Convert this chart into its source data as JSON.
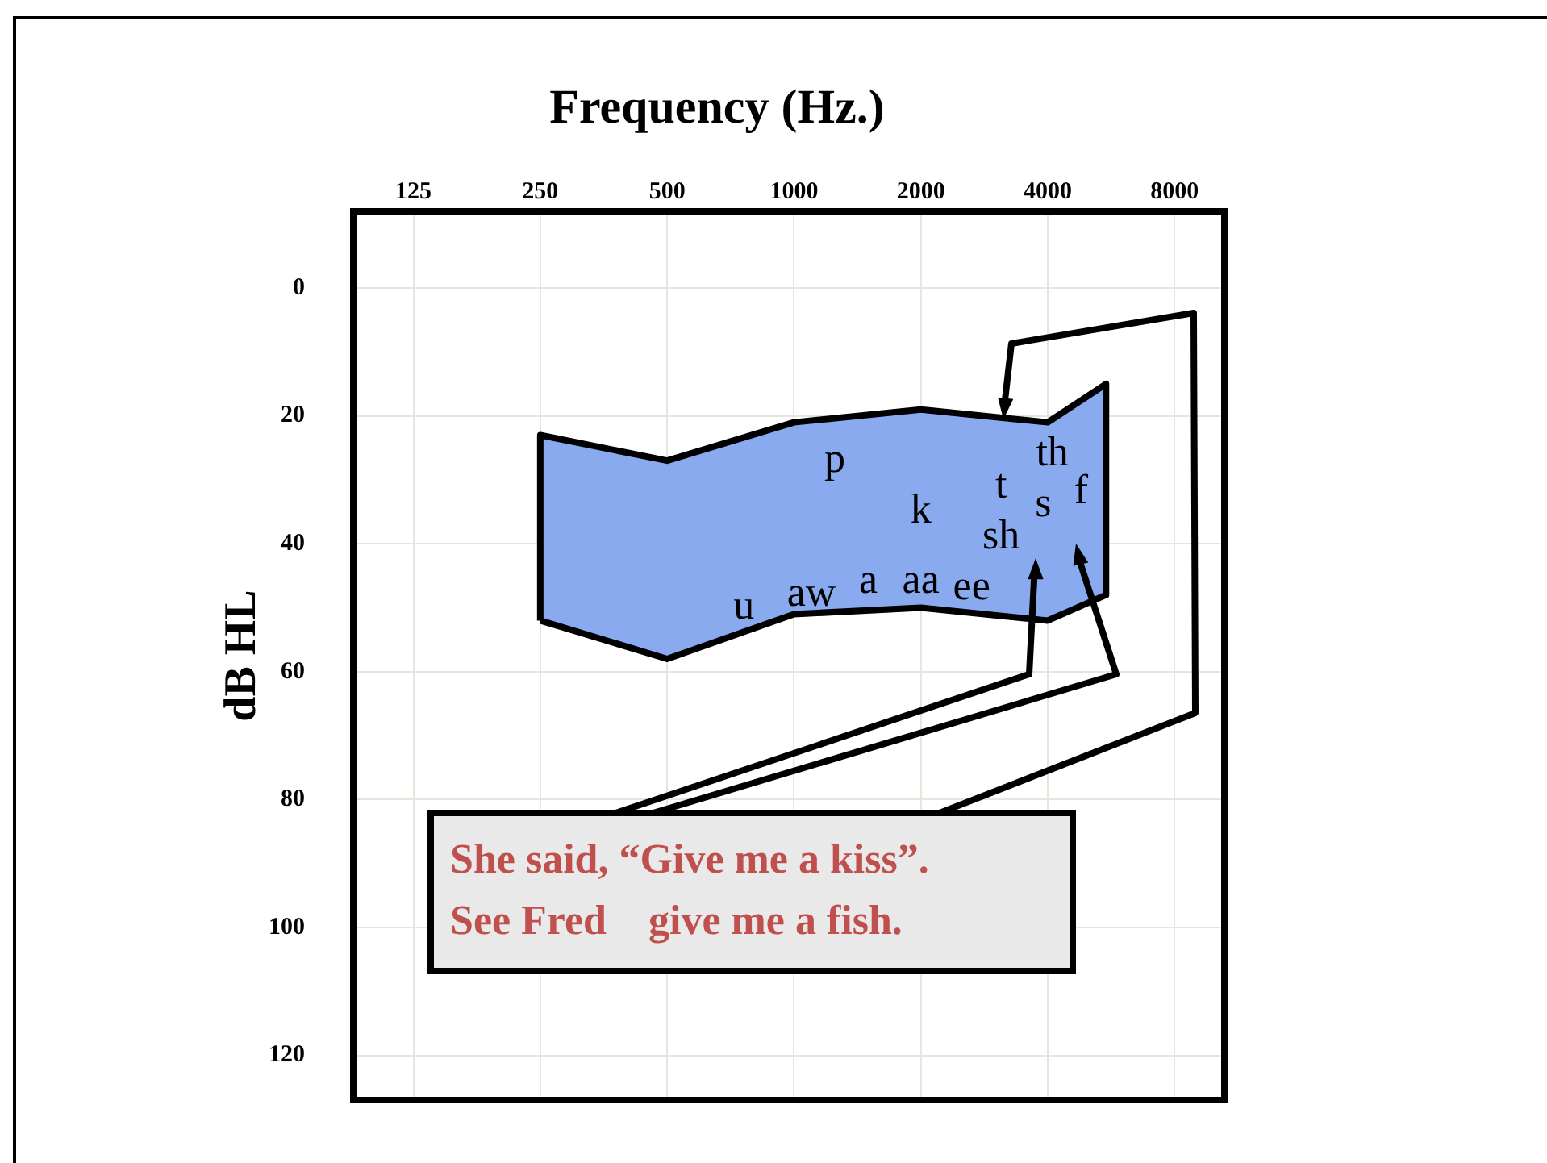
{
  "chart_data": {
    "type": "area",
    "title": "Frequency (Hz.)",
    "ylabel": "dB HL",
    "xlim": [
      90,
      10500
    ],
    "xticks": [
      125,
      250,
      500,
      1000,
      2000,
      4000,
      8000
    ],
    "log": "x",
    "ylim": [
      127,
      -12
    ],
    "yticks": [
      0,
      20,
      40,
      60,
      80,
      100,
      120
    ],
    "grid": true,
    "legend": false,
    "marker": "none",
    "series": [
      {
        "type": "line",
        "color": "#000000",
        "x": [
          250,
          250,
          500,
          1000,
          2000,
          4000,
          5500,
          5500
        ],
        "values": [
          52,
          23,
          27,
          21,
          19,
          21,
          15,
          48
        ]
      },
      {
        "type": "area",
        "color": "#8aaaf0",
        "x": [
          250,
          500,
          1000,
          2000,
          4000,
          5500
        ],
        "values": [
          52,
          58,
          51,
          50,
          52,
          48
        ]
      }
    ],
    "annotations": [
      "p",
      "k",
      "t",
      "th",
      "s",
      "f",
      "sh",
      "u",
      "aw",
      "a",
      "aa",
      "ee",
      "She said, “Give me a kiss”.",
      "See Fred    give me a fish."
    ]
  }
}
